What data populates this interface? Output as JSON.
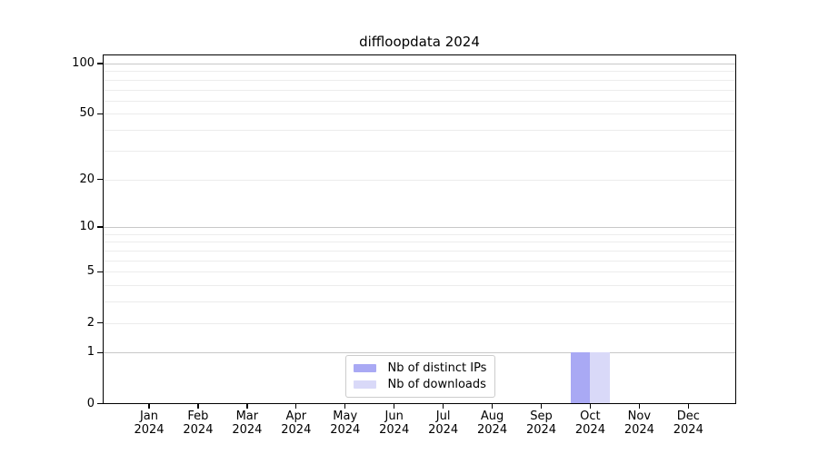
{
  "chart_data": {
    "type": "bar",
    "title": "diffloopdata 2024",
    "x": {
      "months": [
        "Jan",
        "Feb",
        "Mar",
        "Apr",
        "May",
        "Jun",
        "Jul",
        "Aug",
        "Sep",
        "Oct",
        "Nov",
        "Dec"
      ],
      "years": [
        "2024",
        "2024",
        "2024",
        "2024",
        "2024",
        "2024",
        "2024",
        "2024",
        "2024",
        "2024",
        "2024",
        "2024"
      ]
    },
    "y": {
      "scale": "log10(1+y)",
      "lim": [
        0,
        100
      ],
      "tick_values": [
        0,
        1,
        2,
        5,
        10,
        20,
        50,
        100
      ],
      "tick_labels": [
        "0",
        "1",
        "2",
        "5",
        "10",
        "20",
        "50",
        "100"
      ],
      "major_grid_values": [
        1,
        10,
        100
      ],
      "minor_grid_values": [
        2,
        3,
        4,
        5,
        6,
        7,
        8,
        9,
        20,
        30,
        40,
        50,
        60,
        70,
        80,
        90
      ]
    },
    "series": [
      {
        "name": "Nb of distinct IPs",
        "color": "#a9a9f4",
        "values": [
          0,
          0,
          0,
          0,
          0,
          0,
          0,
          0,
          0,
          1,
          0,
          0
        ]
      },
      {
        "name": "Nb of downloads",
        "color": "#d9d9f8",
        "values": [
          0,
          0,
          0,
          0,
          0,
          0,
          0,
          0,
          0,
          1,
          0,
          0
        ]
      }
    ],
    "legend": {
      "position": "bottom-center"
    },
    "grid": true
  },
  "colors": {
    "background": "#ffffff",
    "axis": "#000000",
    "text": "#000000",
    "major_grid": "#c8c8c8",
    "minor_grid": "#ececec",
    "legend_border": "#cccccc"
  }
}
